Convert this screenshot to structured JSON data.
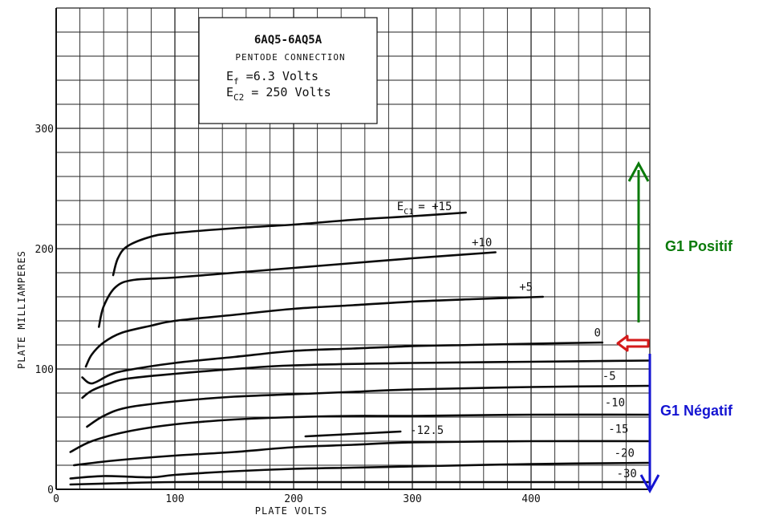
{
  "chart_data": {
    "type": "line",
    "title": "6AQ5-6AQ5A",
    "subtitle": "PENTODE CONNECTION",
    "conditions": [
      {
        "sym": "E",
        "sub": "f",
        "text": " =6.3 Volts"
      },
      {
        "sym": "E",
        "sub": "C2",
        "text": " = 250 Volts"
      }
    ],
    "xlabel": "PLATE VOLTS",
    "ylabel": "PLATE MILLIAMPERES",
    "xlim": [
      0,
      500
    ],
    "ylim": [
      0,
      400
    ],
    "x_ticks": [
      0,
      100,
      200,
      300,
      400
    ],
    "y_ticks": [
      0,
      100,
      200,
      300
    ],
    "grid": true,
    "series": [
      {
        "name": "+15",
        "label_text": "= +15",
        "label_prefix": "E",
        "label_sub": "C1",
        "label_at": [
          287,
          232
        ],
        "x": [
          48,
          52,
          60,
          80,
          100,
          150,
          200,
          250,
          300,
          345
        ],
        "y": [
          178,
          192,
          202,
          210,
          213,
          217,
          220,
          224,
          227,
          230
        ]
      },
      {
        "name": "+10",
        "label_at": [
          350,
          202
        ],
        "x": [
          36,
          40,
          50,
          65,
          100,
          150,
          200,
          250,
          300,
          370
        ],
        "y": [
          135,
          152,
          168,
          174,
          176,
          180,
          184,
          188,
          192,
          197
        ]
      },
      {
        "name": "+5",
        "label_at": [
          390,
          165
        ],
        "x": [
          25,
          30,
          40,
          55,
          80,
          100,
          150,
          200,
          250,
          300,
          350,
          410
        ],
        "y": [
          102,
          112,
          122,
          130,
          136,
          140,
          145,
          150,
          153,
          156,
          158,
          160
        ]
      },
      {
        "name": "0",
        "label_at": [
          453,
          127
        ],
        "x": [
          22,
          30,
          45,
          60,
          100,
          150,
          200,
          250,
          300,
          350,
          400,
          460
        ],
        "y": [
          93,
          88,
          95,
          99,
          105,
          110,
          115,
          117,
          119,
          120,
          121,
          122
        ]
      },
      {
        "name": "-5",
        "label_at": [
          460,
          91
        ],
        "x": [
          22,
          30,
          45,
          60,
          100,
          150,
          200,
          300,
          400,
          500
        ],
        "y": [
          76,
          82,
          88,
          92,
          96,
          100,
          103,
          105,
          106,
          107
        ]
      },
      {
        "name": "-10",
        "label_at": [
          462,
          69
        ],
        "x": [
          26,
          40,
          60,
          100,
          150,
          200,
          250,
          300,
          400,
          500
        ],
        "y": [
          52,
          61,
          68,
          73,
          77,
          79,
          81,
          83,
          85,
          86
        ]
      },
      {
        "name": "-12.5",
        "label_at": [
          298,
          46
        ],
        "x": [
          210,
          230,
          250,
          270,
          290
        ],
        "y": [
          44,
          45,
          46,
          47,
          48
        ]
      },
      {
        "name": "-15",
        "label_at": [
          465,
          47
        ],
        "x": [
          12,
          30,
          60,
          100,
          150,
          200,
          250,
          300,
          400,
          500
        ],
        "y": [
          31,
          40,
          48,
          54,
          58,
          60,
          61,
          61,
          62,
          62
        ]
      },
      {
        "name": "-20",
        "label_at": [
          470,
          27
        ],
        "x": [
          15,
          50,
          100,
          150,
          200,
          250,
          300,
          400,
          500
        ],
        "y": [
          20,
          24,
          28,
          31,
          35,
          37,
          39,
          40,
          40
        ]
      },
      {
        "name": "-30",
        "label_at": [
          472,
          10
        ],
        "x": [
          12,
          40,
          80,
          100,
          150,
          200,
          250,
          300,
          400,
          500
        ],
        "y": [
          9,
          11,
          10,
          12,
          15,
          17,
          18,
          19,
          21,
          22
        ]
      },
      {
        "name": "",
        "label_at": null,
        "x": [
          12,
          50,
          100,
          200,
          300,
          400,
          500
        ],
        "y": [
          4,
          5,
          6,
          6,
          6,
          6,
          6
        ]
      }
    ],
    "annotations": {
      "positive_label": "G1 Positif",
      "negative_label": "G1 Négatif",
      "positive_color": "#0a7a0a",
      "negative_color": "#1414d2",
      "pointer_color": "#d41a1a"
    }
  }
}
